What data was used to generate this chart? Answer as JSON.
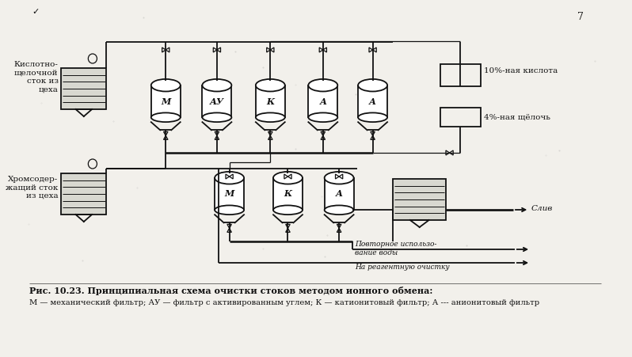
{
  "bg_color": "#f2f0eb",
  "line_color": "#111111",
  "title_line1": "Рис. 10.23. Принципиальная схема очистки стоков методом ионного обмена:",
  "title_line2": "М — механический фильтр; АУ — фильтр с активированным углем; К — катионитовый фильтр; А --- анионитовый фильтр",
  "label_acid_alk": "Кислотно-\nщелочной\nсток из\nцеха",
  "label_chrom": "Хромсодер-\nжащий сток\nиз цеха",
  "label_acid_10": "10%-ная кислота",
  "label_alkali_4": "4%-ная щёлочь",
  "label_drain": "Слив",
  "label_reuse": "Повторное использо-\nвание воды",
  "label_reagent": "На реагентную очистку",
  "filters_row1": [
    "М",
    "АУ",
    "К",
    "А",
    "А"
  ],
  "filters_row2": [
    "М",
    "К",
    "А"
  ],
  "fig_num": "7"
}
